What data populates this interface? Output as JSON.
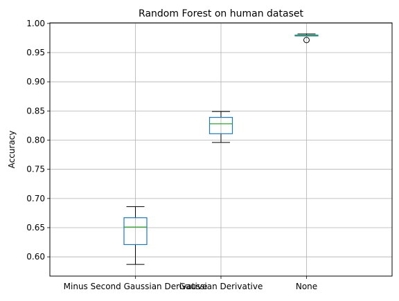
{
  "chart_data": {
    "type": "box",
    "title": "Random Forest on human dataset",
    "ylabel": "Accuracy",
    "xlabel": "",
    "grid": true,
    "ylim": [
      0.567,
      1.001
    ],
    "yticks": [
      0.6,
      0.65,
      0.7,
      0.75,
      0.8,
      0.85,
      0.9,
      0.95,
      1.0
    ],
    "ytick_labels": [
      "0.60",
      "0.65",
      "0.70",
      "0.75",
      "0.80",
      "0.85",
      "0.90",
      "0.95",
      "1.00"
    ],
    "categories": [
      "Minus Second Gaussian Derivative",
      "Gaussian Derivative",
      "None"
    ],
    "boxes": [
      {
        "whisker_low": 0.587,
        "q1": 0.621,
        "median": 0.651,
        "q3": 0.667,
        "whisker_high": 0.686,
        "outliers": []
      },
      {
        "whisker_low": 0.796,
        "q1": 0.811,
        "median": 0.828,
        "q3": 0.839,
        "whisker_high": 0.849,
        "outliers": []
      },
      {
        "whisker_low": 0.9785,
        "q1": 0.9785,
        "median": 0.979,
        "q3": 0.98,
        "whisker_high": 0.982,
        "outliers": [
          0.9715
        ]
      }
    ],
    "colors": {
      "box": "#1f77b4",
      "median": "#2ca02c",
      "whisker": "#000000",
      "grid": "#b0b0b0",
      "axes": "#000000"
    }
  }
}
